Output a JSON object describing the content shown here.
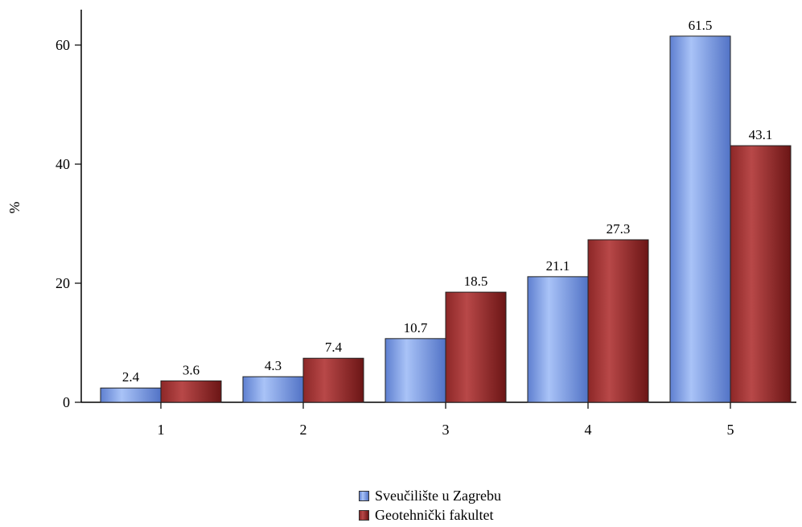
{
  "chart_data": {
    "type": "bar",
    "categories": [
      "1",
      "2",
      "3",
      "4",
      "5"
    ],
    "series": [
      {
        "name": "Sveučilište u Zagrebu",
        "values": [
          2.4,
          4.3,
          10.7,
          21.1,
          61.5
        ],
        "color": "#7e9fe6"
      },
      {
        "name": "Geotehnički fakultet",
        "values": [
          3.6,
          7.4,
          18.5,
          27.3,
          43.1
        ],
        "color": "#a33a3a"
      }
    ],
    "ylabel": "%",
    "xlabel": "",
    "title": "",
    "ylim": [
      0,
      60
    ],
    "yticks": [
      0,
      20,
      40,
      60
    ],
    "grid": false,
    "legend_position": "bottom-center"
  }
}
